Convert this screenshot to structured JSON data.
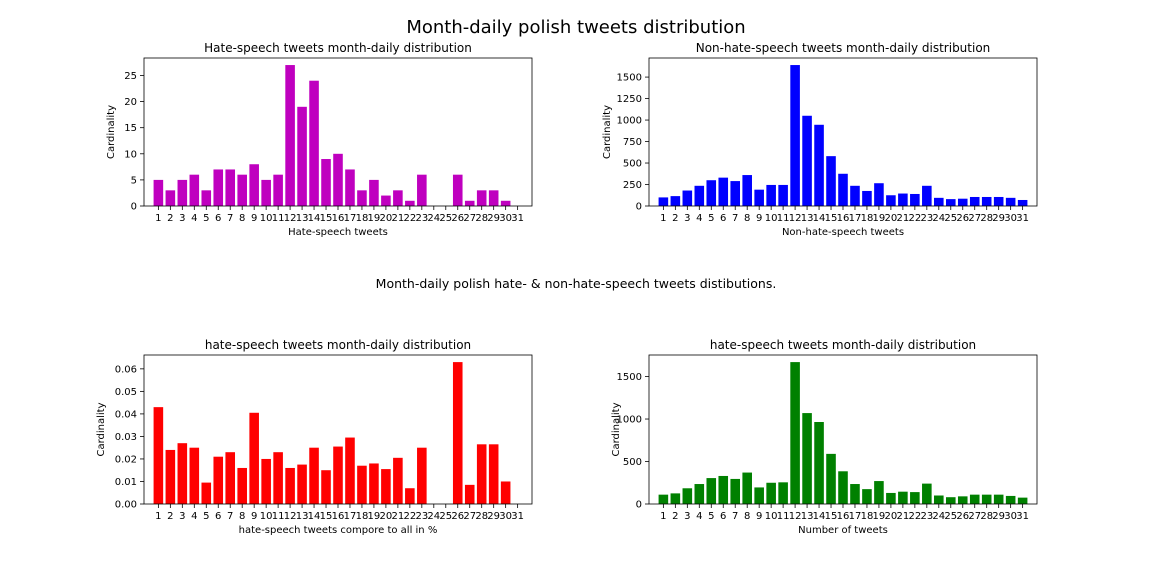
{
  "suptitle": "Month-daily polish tweets distribution",
  "middle_text": "Month-daily polish hate- & non-hate-speech tweets distibutions.",
  "chart_data": [
    {
      "type": "bar",
      "title": "Hate-speech tweets month-daily distribution",
      "xlabel": "Hate-speech tweets",
      "ylabel": "Cardinality",
      "color": "#bf00bf",
      "categories": [
        "1",
        "2",
        "3",
        "4",
        "5",
        "6",
        "7",
        "8",
        "9",
        "10",
        "11",
        "12",
        "13",
        "14",
        "15",
        "16",
        "17",
        "18",
        "19",
        "20",
        "21",
        "22",
        "23",
        "24",
        "25",
        "26",
        "27",
        "28",
        "29",
        "30",
        "31"
      ],
      "values": [
        5,
        3,
        5,
        6,
        3,
        7,
        7,
        6,
        8,
        5,
        6,
        27,
        19,
        24,
        9,
        10,
        7,
        3,
        5,
        2,
        3,
        1,
        6,
        0,
        0,
        6,
        1,
        3,
        3,
        1,
        0
      ],
      "ylim": [
        0,
        28.35
      ],
      "yticks": [
        0,
        5,
        10,
        15,
        20,
        25
      ],
      "ytick_labels": [
        "0",
        "5",
        "10",
        "15",
        "20",
        "25"
      ]
    },
    {
      "type": "bar",
      "title": "Non-hate-speech tweets month-daily distribution",
      "xlabel": "Non-hate-speech tweets",
      "ylabel": "Cardinality",
      "color": "#0000ff",
      "categories": [
        "1",
        "2",
        "3",
        "4",
        "5",
        "6",
        "7",
        "8",
        "9",
        "10",
        "11",
        "12",
        "13",
        "14",
        "15",
        "16",
        "17",
        "18",
        "19",
        "20",
        "21",
        "22",
        "23",
        "24",
        "25",
        "26",
        "27",
        "28",
        "29",
        "30",
        "31"
      ],
      "values": [
        100,
        115,
        180,
        235,
        300,
        330,
        290,
        360,
        190,
        245,
        245,
        1640,
        1050,
        945,
        580,
        375,
        235,
        175,
        265,
        125,
        145,
        140,
        235,
        95,
        80,
        85,
        105,
        105,
        105,
        95,
        70
      ],
      "ylim": [
        0,
        1722
      ],
      "yticks": [
        0,
        250,
        500,
        750,
        1000,
        1250,
        1500
      ],
      "ytick_labels": [
        "0",
        "250",
        "500",
        "750",
        "1000",
        "1250",
        "1500"
      ]
    },
    {
      "type": "bar",
      "title": "hate-speech tweets month-daily distribution",
      "xlabel": "hate-speech tweets compore to all in %",
      "ylabel": "Cardinality",
      "color": "#ff0000",
      "categories": [
        "1",
        "2",
        "3",
        "4",
        "5",
        "6",
        "7",
        "8",
        "9",
        "10",
        "11",
        "12",
        "13",
        "14",
        "15",
        "16",
        "17",
        "18",
        "19",
        "20",
        "21",
        "22",
        "23",
        "24",
        "25",
        "26",
        "27",
        "28",
        "29",
        "30",
        "31"
      ],
      "values": [
        0.043,
        0.024,
        0.027,
        0.025,
        0.0095,
        0.021,
        0.023,
        0.016,
        0.0405,
        0.02,
        0.023,
        0.016,
        0.0175,
        0.025,
        0.015,
        0.0255,
        0.0295,
        0.017,
        0.018,
        0.0155,
        0.0205,
        0.007,
        0.025,
        0,
        0,
        0.063,
        0.0085,
        0.0265,
        0.0265,
        0.01,
        0
      ],
      "ylim": [
        0,
        0.06615
      ],
      "yticks": [
        0,
        0.01,
        0.02,
        0.03,
        0.04,
        0.05,
        0.06
      ],
      "ytick_labels": [
        "0.00",
        "0.01",
        "0.02",
        "0.03",
        "0.04",
        "0.05",
        "0.06"
      ]
    },
    {
      "type": "bar",
      "title": "hate-speech tweets month-daily distribution",
      "xlabel": "Number of tweets",
      "ylabel": "Cardinality",
      "color": "#008000",
      "categories": [
        "1",
        "2",
        "3",
        "4",
        "5",
        "6",
        "7",
        "8",
        "9",
        "10",
        "11",
        "12",
        "13",
        "14",
        "15",
        "16",
        "17",
        "18",
        "19",
        "20",
        "21",
        "22",
        "23",
        "24",
        "25",
        "26",
        "27",
        "28",
        "29",
        "30",
        "31"
      ],
      "values": [
        110,
        125,
        185,
        235,
        305,
        330,
        295,
        370,
        195,
        250,
        255,
        1670,
        1070,
        965,
        590,
        385,
        235,
        175,
        270,
        130,
        145,
        140,
        240,
        100,
        80,
        90,
        110,
        110,
        110,
        95,
        75
      ],
      "ylim": [
        0,
        1753.5
      ],
      "yticks": [
        0,
        500,
        1000,
        1500
      ],
      "ytick_labels": [
        "0",
        "500",
        "1000",
        "1500"
      ]
    }
  ]
}
